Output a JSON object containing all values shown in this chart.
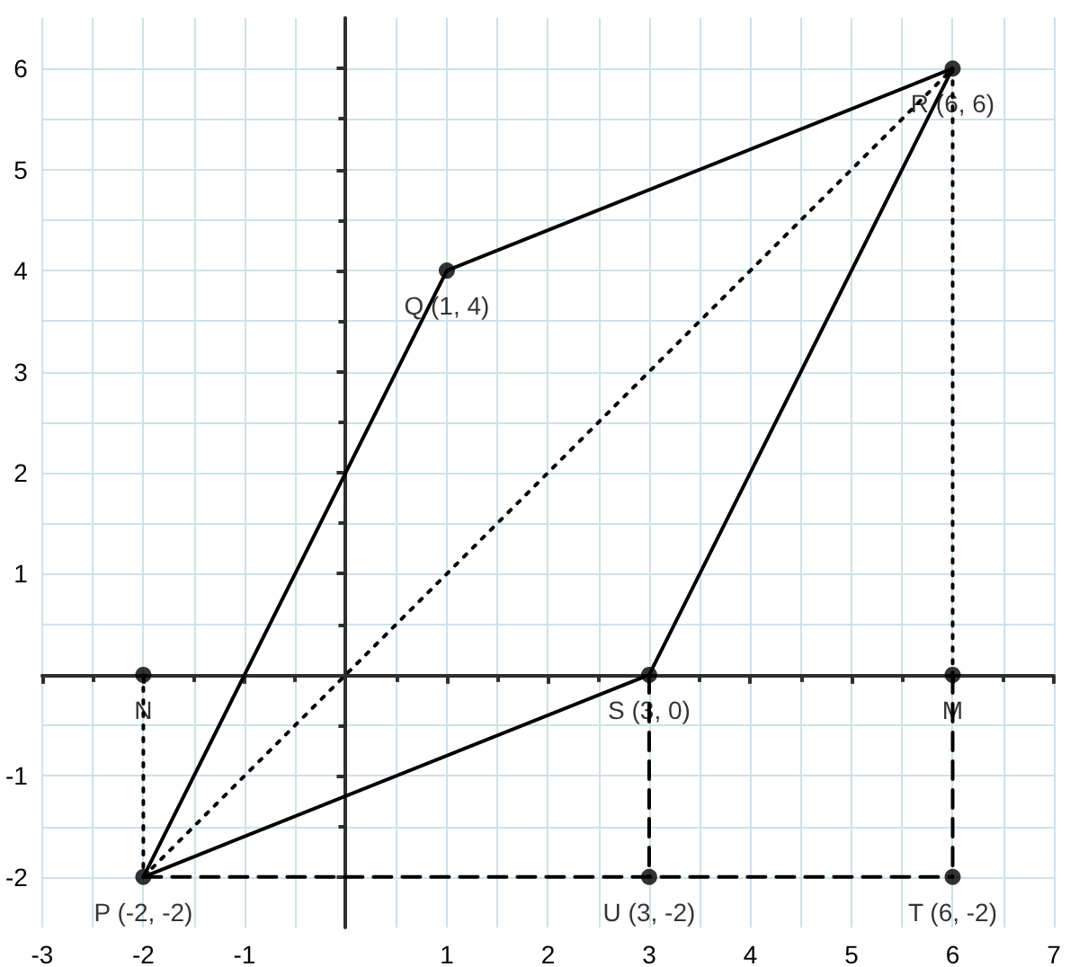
{
  "chart_data": {
    "type": "line",
    "xlim": [
      -3,
      7
    ],
    "ylim": [
      -2.5,
      6.5
    ],
    "xticks": [
      -3,
      -2,
      -1,
      {
        "value": 0,
        "label": null
      },
      1,
      2,
      3,
      4,
      5,
      6,
      7
    ],
    "yticks": [
      -2,
      -1,
      {
        "value": 0,
        "label": null
      },
      1,
      2,
      3,
      4,
      5,
      6
    ],
    "grid": true,
    "series": [
      {
        "color": "#000000",
        "line_style": "solid",
        "marker": "none",
        "x": [
          -2,
          1,
          6
        ],
        "values": [
          -2,
          4,
          6
        ]
      },
      {
        "color": "#000000",
        "line_style": "solid",
        "marker": "none",
        "x": [
          -2,
          3,
          6
        ],
        "values": [
          -2,
          0,
          6
        ]
      },
      {
        "color": "#000000",
        "line_style": "dotted",
        "marker": "none",
        "x": [
          -2,
          6
        ],
        "values": [
          -2,
          6
        ]
      },
      {
        "color": "#000000",
        "line_style": "dashed",
        "marker": "none",
        "x": [
          -2,
          6
        ],
        "values": [
          -2,
          -2
        ]
      },
      {
        "color": "#000000",
        "line_style": "dotted",
        "marker": "none",
        "x": [
          -2,
          -2
        ],
        "values": [
          0,
          -2
        ]
      },
      {
        "color": "#000000",
        "line_style": "dotted",
        "marker": "none",
        "x": [
          6,
          6
        ],
        "values": [
          6,
          0
        ]
      },
      {
        "color": "#000000",
        "line_style": "dashed",
        "marker": "none",
        "x": [
          6,
          6
        ],
        "values": [
          0,
          -2
        ]
      },
      {
        "color": "#000000",
        "line_style": "dashed",
        "marker": "none",
        "x": [
          3,
          3
        ],
        "values": [
          0,
          -2
        ]
      },
      {
        "type": "scatter",
        "color": "#000000",
        "marker": "circle",
        "x": [
          -2,
          1,
          6,
          3,
          -2,
          6,
          3,
          6
        ],
        "values": [
          -2,
          4,
          6,
          0,
          0,
          0,
          -2,
          -2
        ],
        "value_labels": [
          "P (-2, -2)",
          "Q (1, 4)",
          "R (6, 6)",
          "S (3, 0)",
          "N",
          "M",
          "U (3, -2)",
          "T (6, -2)"
        ]
      }
    ]
  }
}
